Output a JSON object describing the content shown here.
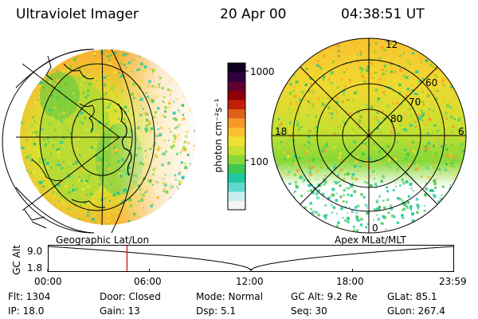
{
  "header": {
    "title": "Ultraviolet Imager",
    "date": "20 Apr 00",
    "time": "04:38:51 UT"
  },
  "left_panel": {
    "caption": "Geographic Lat/Lon"
  },
  "right_panel": {
    "caption": "Apex MLat/MLT",
    "mlt_labels": {
      "top": "12",
      "left": "18",
      "right": "6",
      "bottom": "0"
    },
    "lat_labels": [
      "60",
      "70",
      "80"
    ]
  },
  "colorbar": {
    "unit_label": "photon cm⁻²s⁻¹",
    "tick_labels": [
      "1000",
      "100"
    ],
    "scale": "log",
    "colors": [
      "#f4f4f4",
      "#c8eef0",
      "#5fd8d0",
      "#20c8a0",
      "#40c850",
      "#88d838",
      "#c8e030",
      "#f0e030",
      "#f8c030",
      "#f89828",
      "#e06018",
      "#c02008",
      "#900008",
      "#600030",
      "#300040",
      "#100020"
    ]
  },
  "timeline": {
    "y_label": "GC Alt",
    "y_ticks": [
      "9.0",
      "1.8"
    ],
    "x_ticks": [
      "00:00",
      "06:00",
      "12:00",
      "18:00",
      "23:59"
    ],
    "current_time_fraction": 0.195,
    "orbit_min_fraction": 0.5
  },
  "info": {
    "flt": "Flt: 1304",
    "ip": "IP: 18.0",
    "door": "Door: Closed",
    "gain": "Gain: 13",
    "mode": "Mode: Normal",
    "dsp": "Dsp:    5.1",
    "gcalt": "GC Alt: 9.2 Re",
    "seq": "Seq: 30",
    "glat": "GLat:   85.1",
    "glon": "GLon: 267.4"
  }
}
